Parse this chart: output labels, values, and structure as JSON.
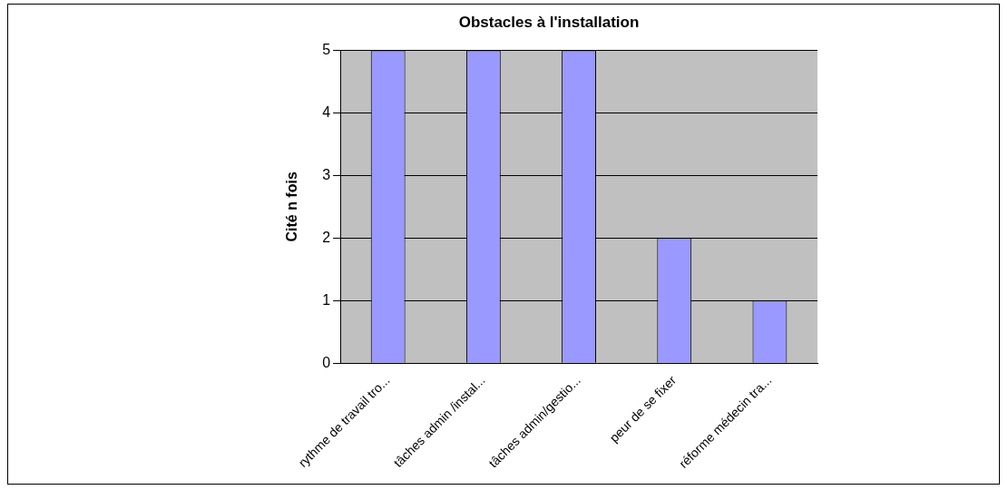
{
  "chart_data": {
    "type": "bar",
    "title": "Obstacles à l'installation",
    "ylabel": "Cité n fois",
    "categories": [
      "rythme de travail tro...",
      "tâches admin /instal...",
      "tâches admin/gestio...",
      "peur de se fixer",
      "réforme médecin tra..."
    ],
    "values": [
      5,
      5,
      5,
      2,
      1
    ],
    "color": "#9999ff",
    "ylim": [
      0,
      5
    ],
    "yticks": [
      0,
      1,
      2,
      3,
      4,
      5
    ],
    "grid": "y",
    "legend": false
  }
}
